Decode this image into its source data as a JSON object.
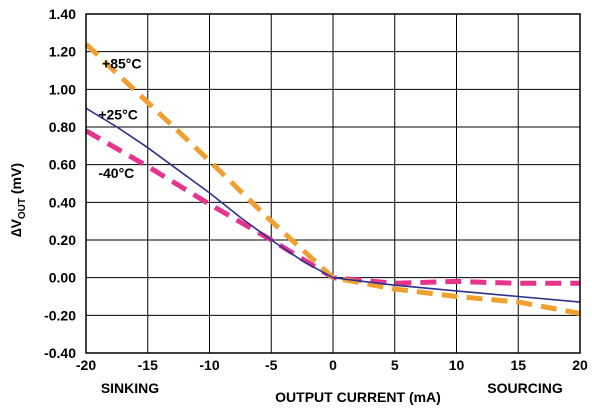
{
  "chart_data": {
    "type": "line",
    "title": "",
    "xlabel": "OUTPUT CURRENT (mA)",
    "ylabel_prefix": "∆V",
    "ylabel_sub": "OUT",
    "ylabel_suffix": " (mV)",
    "x_left_caption": "SINKING",
    "x_right_caption": "SOURCING",
    "xlim": [
      -20,
      20
    ],
    "ylim": [
      -0.4,
      1.4
    ],
    "grid": true,
    "x_ticks": [
      -20,
      -15,
      -10,
      -5,
      0,
      5,
      10,
      15,
      20
    ],
    "x_tick_labels": [
      "-20",
      "-15",
      "-10",
      "-5",
      "0",
      "5",
      "10",
      "15",
      "20"
    ],
    "y_ticks": [
      -0.4,
      -0.2,
      0,
      0.2,
      0.4,
      0.6,
      0.8,
      1.0,
      1.2,
      1.4
    ],
    "y_tick_labels": [
      "-0.40",
      "-0.20",
      "0.00",
      "0.20",
      "0.40",
      "0.60",
      "0.80",
      "1.00",
      "1.20",
      "1.40"
    ],
    "series": [
      {
        "name": "+85°C",
        "color": "#F0A030",
        "style": "dashed",
        "x": [
          -20,
          -15,
          -10,
          -5,
          0,
          5,
          10,
          15,
          20
        ],
        "y": [
          1.24,
          0.93,
          0.62,
          0.3,
          0.0,
          -0.06,
          -0.1,
          -0.13,
          -0.19
        ]
      },
      {
        "name": "+25°C",
        "color": "#2E3192",
        "style": "solid",
        "x": [
          -20,
          -17.5,
          -15,
          -12.5,
          -10,
          -7.5,
          -5,
          -2.5,
          0,
          5,
          10,
          15,
          20
        ],
        "y": [
          0.9,
          0.8,
          0.69,
          0.57,
          0.45,
          0.32,
          0.2,
          0.09,
          0.0,
          -0.04,
          -0.07,
          -0.1,
          -0.13
        ]
      },
      {
        "name": "-40°C",
        "color": "#E6338C",
        "style": "dashed",
        "x": [
          -20,
          -15,
          -10,
          -5,
          0,
          5,
          10,
          15,
          20
        ],
        "y": [
          0.78,
          0.59,
          0.39,
          0.2,
          0.0,
          -0.03,
          -0.02,
          -0.03,
          -0.03
        ]
      }
    ],
    "series_label_anchor": [
      {
        "x": -18.7,
        "y": 1.11
      },
      {
        "x": -19.0,
        "y": 0.84
      },
      {
        "x": -19.0,
        "y": 0.53
      }
    ]
  }
}
